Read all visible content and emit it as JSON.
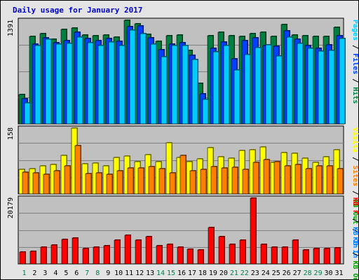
{
  "colors": {
    "pages_front": "#00ccff",
    "pages_back": "#00a0c8",
    "files_front": "#0040ff",
    "files_back": "#0030c0",
    "hits_front": "#008040",
    "hits_back": "#006030",
    "visits_front": "#ffff00",
    "visits_back": "#c0c000",
    "sites_front": "#ff8000",
    "sites_back": "#c06000",
    "kbin_front": "#0080ff",
    "kbout_front": "#00a000",
    "kbf_front": "#ff0000",
    "kbf_back": "#c00000",
    "panel_bg": "#c0c0c0",
    "weekday_label": "#000000",
    "weekend_label": "#00804a",
    "title": "#0000cc"
  },
  "chart_data": {
    "type": "bar",
    "title": "Daily usage for January 2017",
    "categories": [
      "1",
      "2",
      "3",
      "4",
      "5",
      "6",
      "7",
      "8",
      "9",
      "10",
      "11",
      "12",
      "13",
      "14",
      "15",
      "16",
      "17",
      "18",
      "19",
      "20",
      "21",
      "22",
      "23",
      "24",
      "25",
      "26",
      "27",
      "28",
      "29",
      "30",
      "31"
    ],
    "weekend_days": [
      "1",
      "7",
      "8",
      "14",
      "15",
      "21",
      "22",
      "28",
      "29"
    ],
    "panels": [
      {
        "name": "hits",
        "max_label": "1391",
        "ylim": [
          0,
          1391
        ],
        "legend": [
          {
            "text": "Pages",
            "color": "#00ccff"
          },
          {
            "text": " / ",
            "color": "#000000"
          },
          {
            "text": "Files",
            "color": "#0040ff"
          },
          {
            "text": " / ",
            "color": "#000000"
          },
          {
            "text": "Hits",
            "color": "#008040"
          }
        ],
        "series": [
          {
            "name": "Hits",
            "color": "#008040",
            "values": [
              394,
              1173,
              1210,
              1134,
              1265,
              1290,
              1198,
              1185,
              1198,
              1166,
              1391,
              1342,
              1202,
              1110,
              1185,
              1198,
              986,
              546,
              1185,
              1234,
              1185,
              1173,
              1210,
              1234,
              1173,
              1335,
              1198,
              1185,
              1173,
              1173,
              1296
            ]
          },
          {
            "name": "Files",
            "color": "#0040ff",
            "values": [
              335,
              1074,
              1160,
              1094,
              1117,
              1229,
              1142,
              1122,
              1149,
              1105,
              1306,
              1315,
              1154,
              1000,
              1074,
              1092,
              925,
              406,
              1012,
              1099,
              875,
              1121,
              1160,
              1055,
              1044,
              1253,
              1139,
              1055,
              1011,
              1061,
              1185
            ]
          },
          {
            "name": "Pages",
            "color": "#00ccff",
            "values": [
              285,
              1049,
              1135,
              1069,
              1078,
              1166,
              1086,
              1055,
              1098,
              1051,
              1261,
              1215,
              1068,
              903,
              1049,
              1055,
              864,
              331,
              967,
              1052,
              720,
              930,
              1022,
              1060,
              907,
              1166,
              1077,
              1017,
              978,
              988,
              1149
            ]
          }
        ]
      },
      {
        "name": "visits",
        "max_label": "158",
        "ylim": [
          0,
          158
        ],
        "legend": [
          {
            "text": "Visits",
            "color": "#ffff00"
          },
          {
            "text": " / ",
            "color": "#000000"
          },
          {
            "text": "Sites",
            "color": "#ff8000"
          },
          {
            "text": " / ",
            "color": "#000000"
          },
          {
            "text": "KB Out",
            "color": "#00a000"
          },
          {
            "text": " / ",
            "color": "#000000"
          },
          {
            "text": "KB In",
            "color": "#0080ff"
          }
        ],
        "series": [
          {
            "name": "Visits",
            "color": "#ffff00",
            "values": [
              59,
              61,
              67,
              71,
              92,
              158,
              72,
              74,
              68,
              88,
              91,
              78,
              94,
              77,
              123,
              87,
              77,
              84,
              111,
              89,
              85,
              105,
              106,
              113,
              75,
              99,
              98,
              85,
              75,
              89,
              106
            ]
          },
          {
            "name": "Sites",
            "color": "#ff8000",
            "values": [
              52,
              51,
              47,
              56,
              68,
              116,
              48,
              51,
              47,
              56,
              62,
              62,
              66,
              61,
              51,
              93,
              56,
              58,
              66,
              63,
              64,
              58,
              75,
              83,
              78,
              67,
              70,
              60,
              67,
              68,
              60
            ]
          }
        ]
      },
      {
        "name": "kbytes",
        "max_label": "20179",
        "ylim": [
          0,
          20179
        ],
        "legend": [
          {
            "text": "KB F",
            "color": "#ff0000"
          },
          {
            "text": " / ",
            "color": "#000000"
          },
          {
            "text": "KB In",
            "color": "#0080ff"
          },
          {
            "text": " / ",
            "color": "#000000"
          },
          {
            "text": "KB Out",
            "color": "#00a000"
          }
        ],
        "series": [
          {
            "name": "KB F",
            "color": "#ff0000",
            "values": [
              3600,
              3900,
              5200,
              5800,
              7500,
              7900,
              4800,
              5200,
              5500,
              7200,
              8700,
              7400,
              8300,
              5600,
              6100,
              5200,
              4500,
              4200,
              11100,
              8400,
              6000,
              7300,
              20179,
              6000,
              5200,
              5200,
              7400,
              4200,
              4800,
              4800,
              5000
            ]
          }
        ]
      }
    ]
  }
}
